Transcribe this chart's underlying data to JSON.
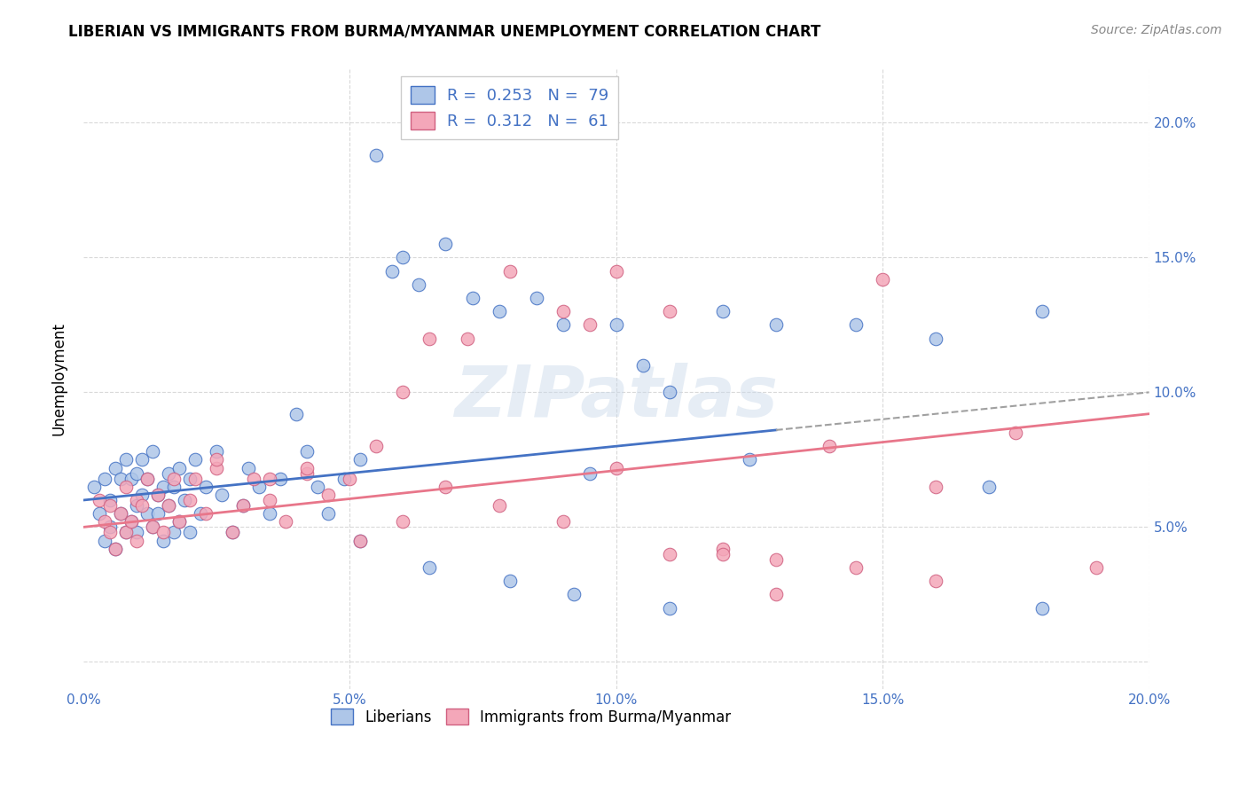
{
  "title": "LIBERIAN VS IMMIGRANTS FROM BURMA/MYANMAR UNEMPLOYMENT CORRELATION CHART",
  "source": "Source: ZipAtlas.com",
  "ylabel": "Unemployment",
  "xlim": [
    0.0,
    0.2
  ],
  "ylim": [
    -0.01,
    0.22
  ],
  "color_blue": "#aec6e8",
  "color_pink": "#f4a7b9",
  "line_blue": "#4472c4",
  "line_pink": "#e8768a",
  "line_dash": "#a0a0a0",
  "watermark": "ZIPatlas",
  "blue_line_start": 0.06,
  "blue_line_end": 0.1,
  "pink_line_start": 0.05,
  "pink_line_end": 0.092,
  "blue_x": [
    0.002,
    0.003,
    0.004,
    0.004,
    0.005,
    0.005,
    0.006,
    0.006,
    0.007,
    0.007,
    0.008,
    0.008,
    0.009,
    0.009,
    0.01,
    0.01,
    0.01,
    0.011,
    0.011,
    0.012,
    0.012,
    0.013,
    0.013,
    0.014,
    0.014,
    0.015,
    0.015,
    0.016,
    0.016,
    0.017,
    0.017,
    0.018,
    0.018,
    0.019,
    0.02,
    0.02,
    0.021,
    0.022,
    0.023,
    0.025,
    0.026,
    0.028,
    0.03,
    0.031,
    0.033,
    0.035,
    0.037,
    0.04,
    0.042,
    0.044,
    0.046,
    0.049,
    0.052,
    0.055,
    0.058,
    0.06,
    0.063,
    0.068,
    0.073,
    0.078,
    0.085,
    0.09,
    0.095,
    0.1,
    0.105,
    0.11,
    0.12,
    0.125,
    0.13,
    0.145,
    0.16,
    0.17,
    0.18,
    0.052,
    0.065,
    0.08,
    0.092,
    0.11,
    0.18
  ],
  "blue_y": [
    0.065,
    0.055,
    0.045,
    0.068,
    0.05,
    0.06,
    0.042,
    0.072,
    0.055,
    0.068,
    0.048,
    0.075,
    0.052,
    0.068,
    0.058,
    0.07,
    0.048,
    0.062,
    0.075,
    0.055,
    0.068,
    0.05,
    0.078,
    0.062,
    0.055,
    0.065,
    0.045,
    0.058,
    0.07,
    0.048,
    0.065,
    0.052,
    0.072,
    0.06,
    0.048,
    0.068,
    0.075,
    0.055,
    0.065,
    0.078,
    0.062,
    0.048,
    0.058,
    0.072,
    0.065,
    0.055,
    0.068,
    0.092,
    0.078,
    0.065,
    0.055,
    0.068,
    0.075,
    0.188,
    0.145,
    0.15,
    0.14,
    0.155,
    0.135,
    0.13,
    0.135,
    0.125,
    0.07,
    0.125,
    0.11,
    0.1,
    0.13,
    0.075,
    0.125,
    0.125,
    0.12,
    0.065,
    0.13,
    0.045,
    0.035,
    0.03,
    0.025,
    0.02,
    0.02
  ],
  "pink_x": [
    0.003,
    0.004,
    0.005,
    0.005,
    0.006,
    0.007,
    0.008,
    0.008,
    0.009,
    0.01,
    0.01,
    0.011,
    0.012,
    0.013,
    0.014,
    0.015,
    0.016,
    0.017,
    0.018,
    0.02,
    0.021,
    0.023,
    0.025,
    0.028,
    0.03,
    0.032,
    0.035,
    0.038,
    0.042,
    0.046,
    0.05,
    0.055,
    0.06,
    0.065,
    0.072,
    0.08,
    0.09,
    0.095,
    0.1,
    0.11,
    0.12,
    0.13,
    0.14,
    0.15,
    0.16,
    0.175,
    0.19,
    0.025,
    0.035,
    0.042,
    0.052,
    0.06,
    0.068,
    0.078,
    0.09,
    0.1,
    0.11,
    0.12,
    0.13,
    0.145,
    0.16
  ],
  "pink_y": [
    0.06,
    0.052,
    0.048,
    0.058,
    0.042,
    0.055,
    0.048,
    0.065,
    0.052,
    0.06,
    0.045,
    0.058,
    0.068,
    0.05,
    0.062,
    0.048,
    0.058,
    0.068,
    0.052,
    0.06,
    0.068,
    0.055,
    0.072,
    0.048,
    0.058,
    0.068,
    0.06,
    0.052,
    0.07,
    0.062,
    0.068,
    0.08,
    0.1,
    0.12,
    0.12,
    0.145,
    0.13,
    0.125,
    0.145,
    0.13,
    0.042,
    0.038,
    0.08,
    0.142,
    0.065,
    0.085,
    0.035,
    0.075,
    0.068,
    0.072,
    0.045,
    0.052,
    0.065,
    0.058,
    0.052,
    0.072,
    0.04,
    0.04,
    0.025,
    0.035,
    0.03
  ]
}
